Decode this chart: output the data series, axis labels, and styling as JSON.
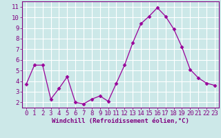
{
  "x": [
    0,
    1,
    2,
    3,
    4,
    5,
    6,
    7,
    8,
    9,
    10,
    11,
    12,
    13,
    14,
    15,
    16,
    17,
    18,
    19,
    20,
    21,
    22,
    23
  ],
  "y": [
    3.7,
    5.5,
    5.5,
    2.3,
    3.3,
    4.4,
    2.0,
    1.85,
    2.3,
    2.6,
    2.1,
    3.8,
    5.5,
    7.6,
    9.4,
    10.1,
    10.9,
    10.1,
    8.9,
    7.2,
    5.1,
    4.3,
    3.8,
    3.6
  ],
  "line_color": "#990099",
  "marker": "D",
  "marker_size": 2.5,
  "bg_color": "#cce8e8",
  "grid_color": "#ffffff",
  "xlabel": "Windchill (Refroidissement éolien,°C)",
  "xlim": [
    -0.5,
    23.5
  ],
  "ylim": [
    1.5,
    11.5
  ],
  "yticks": [
    2,
    3,
    4,
    5,
    6,
    7,
    8,
    9,
    10,
    11
  ],
  "xticks": [
    0,
    1,
    2,
    3,
    4,
    5,
    6,
    7,
    8,
    9,
    10,
    11,
    12,
    13,
    14,
    15,
    16,
    17,
    18,
    19,
    20,
    21,
    22,
    23
  ],
  "tick_color": "#800080",
  "label_color": "#800080",
  "spine_color": "#800080",
  "font_size": 6.5,
  "xlabel_fontsize": 6.5
}
